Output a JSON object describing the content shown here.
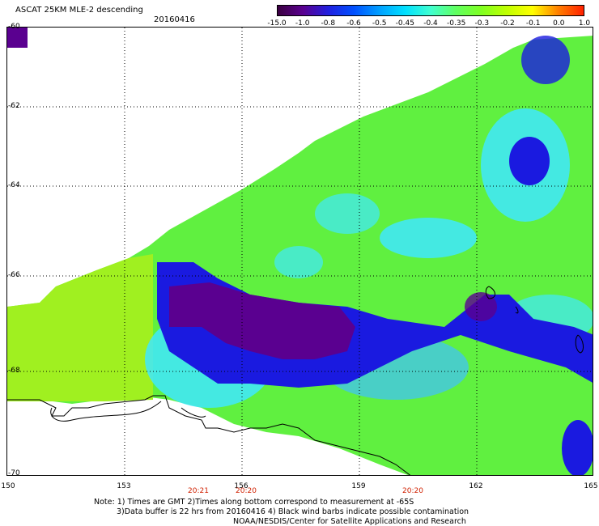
{
  "header": {
    "title": "ASCAT 25KM MLE-2 descending",
    "date": "20160416"
  },
  "colorbar": {
    "labels": [
      "-15.0",
      "-1.0",
      "-0.8",
      "-0.6",
      "-0.5",
      "-0.45",
      "-0.4",
      "-0.35",
      "-0.3",
      "-0.2",
      "-0.1",
      "0.0",
      "1.0"
    ],
    "colors": [
      "#3a0040",
      "#5a0090",
      "#2020e0",
      "#0050ff",
      "#00a0ff",
      "#00e0ff",
      "#40ffd0",
      "#60ff60",
      "#80ff20",
      "#c0ff00",
      "#ffff00",
      "#ff8000",
      "#ff2000"
    ]
  },
  "map": {
    "lat_labels": [
      "-60",
      "-62",
      "-64",
      "-66",
      "-68",
      "-70"
    ],
    "lon_labels": [
      "150",
      "153",
      "156",
      "159",
      "162",
      "165"
    ],
    "time_labels": [
      "20:21",
      "20:20",
      "20:20"
    ],
    "colors": {
      "purple": "#5a0090",
      "blue": "#1a1ae0",
      "cyan": "#40e8ff",
      "lightblue": "#40c0ff",
      "green": "#60f040",
      "lightgreen": "#80ff30",
      "yellowgreen": "#a0ff20"
    }
  },
  "footer": {
    "line1": "Note: 1) Times are GMT 2)Times along bottom correspond to measurement at -65S",
    "line2": "3)Data buffer is 22 hrs from 20160416 4) Black wind barbs indicate possible contamination",
    "line3": "NOAA/NESDIS/Center for Satellite Applications and Research"
  }
}
